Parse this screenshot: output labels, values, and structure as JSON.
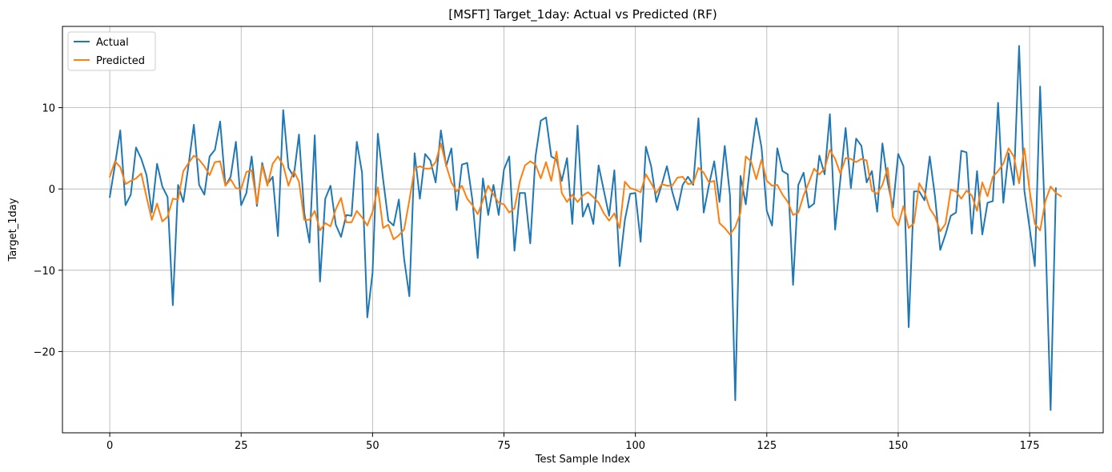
{
  "chart_data": {
    "type": "line",
    "title": "[MSFT] Target_1day: Actual vs Predicted (RF)",
    "xlabel": "Test Sample Index",
    "ylabel": "Target_1day",
    "xlim": [
      -9,
      189
    ],
    "ylim": [
      -30,
      20
    ],
    "xticks": [
      0,
      25,
      50,
      75,
      100,
      125,
      150,
      175
    ],
    "yticks": [
      -20,
      -10,
      0,
      10
    ],
    "grid": true,
    "legend_position": "upper-left",
    "series": [
      {
        "name": "Actual",
        "color": "#1f77b4",
        "values": [
          -1,
          3,
          7.2,
          -2,
          -0.7,
          5.1,
          3.7,
          1.7,
          -2.9,
          3.1,
          0.3,
          -1,
          -14.3,
          0.5,
          -1.6,
          3,
          7.9,
          0.5,
          -0.7,
          4,
          4.8,
          8.3,
          0.4,
          1.5,
          5.8,
          -2,
          -0.5,
          4,
          -2.1,
          3.2,
          0.6,
          1.5,
          -5.8,
          9.7,
          2.6,
          1.5,
          6.7,
          -2.9,
          -6.6,
          6.6,
          -11.4,
          -1.2,
          0.4,
          -4.4,
          -5.9,
          -3.2,
          -3.3,
          5.8,
          2,
          -15.8,
          -10.3,
          6.8,
          1.2,
          -3.9,
          -4.5,
          -1.3,
          -8.6,
          -13.2,
          4.4,
          -1.2,
          4.3,
          3.5,
          0.8,
          7.2,
          2.8,
          5,
          -2.6,
          3,
          3.2,
          -1.4,
          -8.5,
          1.3,
          -3.2,
          0.5,
          -3.2,
          2.4,
          4,
          -7.6,
          -0.5,
          -0.5,
          -6.7,
          4,
          8.4,
          8.8,
          4,
          3.6,
          1,
          3.8,
          -4.3,
          7.8,
          -3.4,
          -1.8,
          -4.3,
          2.9,
          -0.2,
          -3.3,
          2.3,
          -9.5,
          -3.8,
          -0.6,
          -0.5,
          -6.5,
          5.2,
          2.8,
          -1.6,
          0.5,
          2.8,
          -0.3,
          -2.6,
          0.5,
          1.5,
          0.5,
          8.7,
          -2.9,
          0.5,
          3.4,
          -1.6,
          5.3,
          -0.8,
          -26,
          1.6,
          -1.9,
          3.9,
          8.7,
          5.1,
          -2.7,
          -4.5,
          5,
          2.2,
          1.8,
          -11.8,
          0.5,
          2,
          -2.3,
          -1.8,
          4.1,
          1.8,
          9.2,
          -5,
          1.2,
          7.5,
          0.1,
          6.2,
          5.3,
          0.8,
          2.2,
          -2.8,
          5.6,
          0.8,
          -2.3,
          4.3,
          2.8,
          -17,
          -0.3,
          -0.3,
          -1.4,
          4,
          -0.9,
          -7.5,
          -5.6,
          -3.3,
          -2.9,
          4.7,
          4.5,
          -5.5,
          2.2,
          -5.6,
          -1.7,
          -1.5,
          10.6,
          -1.7,
          4.4,
          0.5,
          17.6,
          -0.2,
          -4.8,
          -9.5,
          12.6,
          -5.3,
          -27.2,
          0.1
        ]
      },
      {
        "name": "Predicted",
        "color": "#ff7f0e",
        "values": [
          1.5,
          3.4,
          2.7,
          0.6,
          1,
          1.3,
          1.9,
          -1,
          -3.8,
          -1.8,
          -4,
          -3.4,
          -1.2,
          -1.3,
          2.2,
          3.2,
          4.1,
          3.6,
          2.8,
          1.7,
          3.3,
          3.4,
          0.4,
          1.2,
          0.1,
          0,
          2.1,
          2.3,
          -1.8,
          2.9,
          0.4,
          3.1,
          4,
          2.9,
          0.4,
          2.2,
          0.9,
          -3.8,
          -3.8,
          -2.7,
          -5.1,
          -4.2,
          -4.6,
          -2.5,
          -1.1,
          -4.1,
          -4.1,
          -2.7,
          -3.5,
          -4.5,
          -2.8,
          0.2,
          -4.8,
          -4.4,
          -6.2,
          -5.7,
          -5,
          -1.4,
          2.5,
          2.8,
          2.5,
          2.5,
          3.3,
          5.6,
          2.9,
          0.8,
          -0.3,
          0.4,
          -1.2,
          -2,
          -3.1,
          -1.4,
          0.4,
          -0.7,
          -1.7,
          -1.9,
          -2.9,
          -2.4,
          0.9,
          2.9,
          3.4,
          3,
          1.3,
          3.3,
          1,
          4.6,
          -0.5,
          -1.6,
          -0.7,
          -1.6,
          -0.8,
          -0.4,
          -1,
          -1.7,
          -3,
          -3.9,
          -3,
          -4.8,
          0.9,
          0.1,
          -0.1,
          -0.4,
          1.8,
          0.7,
          -0.5,
          0.6,
          0.4,
          0.4,
          1.4,
          1.5,
          0.6,
          0.7,
          2.6,
          2,
          0.8,
          1,
          -4.2,
          -4.8,
          -5.6,
          -4.7,
          -2.9,
          4,
          3.4,
          1.2,
          3.6,
          1,
          0.4,
          0.5,
          -0.7,
          -1.6,
          -3.2,
          -2.9,
          -0.8,
          0.8,
          2.5,
          1.8,
          2.5,
          4.8,
          3.7,
          1.9,
          3.8,
          3.7,
          3.3,
          3.7,
          3.5,
          -0.2,
          -0.6,
          0.5,
          2.6,
          -3.4,
          -4.5,
          -2.1,
          -4.8,
          -4.2,
          0.7,
          -0.4,
          -2.4,
          -3.4,
          -5.2,
          -4.3,
          -0.1,
          -0.3,
          -1.2,
          -0.2,
          -0.8,
          -2.7,
          0.8,
          -0.9,
          1.5,
          2.2,
          3.1,
          5,
          4,
          0.7,
          5,
          -0.2,
          -4.3,
          -5.1,
          -1.5,
          0.3,
          -0.5,
          -0.9
        ]
      }
    ]
  }
}
